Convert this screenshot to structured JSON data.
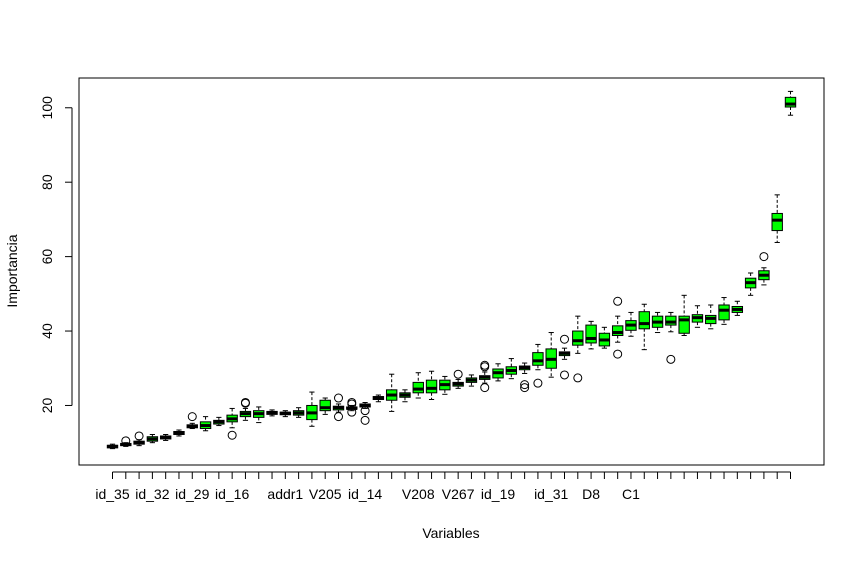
{
  "chart_data": {
    "type": "boxplot",
    "xlabel": "Variables",
    "ylabel": "Importancia",
    "ylim": [
      4,
      108
    ],
    "yticks": [
      20,
      40,
      60,
      80,
      100
    ],
    "box_color": "#00ff00",
    "x_tick_labels": [
      {
        "pos": 1,
        "label": "id_35"
      },
      {
        "pos": 4,
        "label": "id_32"
      },
      {
        "pos": 7,
        "label": "id_29"
      },
      {
        "pos": 10,
        "label": "id_16"
      },
      {
        "pos": 14,
        "label": "addr1"
      },
      {
        "pos": 17,
        "label": "V205"
      },
      {
        "pos": 20,
        "label": "id_14"
      },
      {
        "pos": 24,
        "label": "V208"
      },
      {
        "pos": 27,
        "label": "V267"
      },
      {
        "pos": 30,
        "label": "id_19"
      },
      {
        "pos": 34,
        "label": "id_31"
      },
      {
        "pos": 37,
        "label": "D8"
      },
      {
        "pos": 40,
        "label": "C1"
      }
    ],
    "boxes": [
      {
        "min": 8.4,
        "q1": 8.6,
        "median": 9.0,
        "q3": 9.3,
        "max": 9.6,
        "outliers": []
      },
      {
        "min": 9.0,
        "q1": 9.2,
        "median": 9.5,
        "q3": 9.8,
        "max": 10.0,
        "outliers": [
          10.5
        ]
      },
      {
        "min": 9.2,
        "q1": 9.6,
        "median": 10.0,
        "q3": 10.4,
        "max": 10.8,
        "outliers": [
          11.8
        ]
      },
      {
        "min": 10.0,
        "q1": 10.4,
        "median": 11.0,
        "q3": 11.6,
        "max": 12.2,
        "outliers": []
      },
      {
        "min": 10.6,
        "q1": 11.0,
        "median": 11.4,
        "q3": 11.8,
        "max": 12.2,
        "outliers": []
      },
      {
        "min": 11.8,
        "q1": 12.2,
        "median": 12.6,
        "q3": 13.0,
        "max": 13.4,
        "outliers": []
      },
      {
        "min": 13.8,
        "q1": 14.0,
        "median": 14.4,
        "q3": 14.8,
        "max": 15.2,
        "outliers": [
          17.0
        ]
      },
      {
        "min": 13.2,
        "q1": 13.8,
        "median": 14.6,
        "q3": 15.6,
        "max": 17.0,
        "outliers": []
      },
      {
        "min": 14.6,
        "q1": 15.0,
        "median": 15.6,
        "q3": 16.0,
        "max": 16.8,
        "outliers": []
      },
      {
        "min": 14.0,
        "q1": 15.6,
        "median": 16.4,
        "q3": 17.4,
        "max": 19.2,
        "outliers": [
          12.0
        ]
      },
      {
        "min": 16.0,
        "q1": 17.0,
        "median": 17.8,
        "q3": 18.4,
        "max": 19.2,
        "outliers": [
          20.6,
          20.8
        ]
      },
      {
        "min": 15.4,
        "q1": 16.8,
        "median": 17.8,
        "q3": 18.6,
        "max": 19.6,
        "outliers": []
      },
      {
        "min": 17.2,
        "q1": 17.6,
        "median": 18.0,
        "q3": 18.4,
        "max": 18.8,
        "outliers": []
      },
      {
        "min": 17.0,
        "q1": 17.5,
        "median": 17.9,
        "q3": 18.2,
        "max": 18.6,
        "outliers": []
      },
      {
        "min": 16.8,
        "q1": 17.4,
        "median": 18.0,
        "q3": 18.6,
        "max": 19.4,
        "outliers": []
      },
      {
        "min": 14.4,
        "q1": 16.2,
        "median": 18.0,
        "q3": 20.0,
        "max": 23.6,
        "outliers": []
      },
      {
        "min": 17.6,
        "q1": 18.6,
        "median": 19.4,
        "q3": 21.4,
        "max": 22.0,
        "outliers": []
      },
      {
        "min": 18.2,
        "q1": 18.8,
        "median": 19.4,
        "q3": 19.8,
        "max": 20.4,
        "outliers": [
          17.0,
          22.0
        ]
      },
      {
        "min": 18.6,
        "q1": 19.0,
        "median": 19.2,
        "q3": 19.6,
        "max": 20.0,
        "outliers": [
          18.2,
          20.4,
          20.8
        ]
      },
      {
        "min": 19.2,
        "q1": 19.6,
        "median": 20.0,
        "q3": 20.4,
        "max": 20.8,
        "outliers": [
          16.0,
          18.6
        ]
      },
      {
        "min": 21.0,
        "q1": 21.6,
        "median": 22.0,
        "q3": 22.4,
        "max": 22.8,
        "outliers": []
      },
      {
        "min": 18.4,
        "q1": 21.4,
        "median": 22.8,
        "q3": 24.2,
        "max": 28.4,
        "outliers": []
      },
      {
        "min": 21.0,
        "q1": 22.2,
        "median": 22.8,
        "q3": 23.4,
        "max": 24.2,
        "outliers": []
      },
      {
        "min": 22.0,
        "q1": 23.4,
        "median": 24.4,
        "q3": 26.2,
        "max": 28.8,
        "outliers": []
      },
      {
        "min": 21.6,
        "q1": 23.4,
        "median": 24.6,
        "q3": 26.8,
        "max": 29.2,
        "outliers": []
      },
      {
        "min": 23.0,
        "q1": 24.2,
        "median": 25.6,
        "q3": 26.8,
        "max": 27.8,
        "outliers": []
      },
      {
        "min": 24.6,
        "q1": 25.2,
        "median": 25.8,
        "q3": 26.2,
        "max": 27.0,
        "outliers": [
          28.4
        ]
      },
      {
        "min": 25.2,
        "q1": 26.2,
        "median": 26.8,
        "q3": 27.4,
        "max": 28.2,
        "outliers": []
      },
      {
        "min": 26.0,
        "q1": 27.0,
        "median": 27.6,
        "q3": 28.0,
        "max": 29.0,
        "outliers": [
          24.8,
          30.4,
          30.8
        ]
      },
      {
        "min": 26.6,
        "q1": 27.4,
        "median": 28.8,
        "q3": 29.8,
        "max": 31.2,
        "outliers": []
      },
      {
        "min": 27.2,
        "q1": 28.4,
        "median": 29.4,
        "q3": 30.4,
        "max": 32.6,
        "outliers": []
      },
      {
        "min": 28.6,
        "q1": 29.6,
        "median": 30.2,
        "q3": 30.6,
        "max": 31.4,
        "outliers": [
          24.8,
          25.6
        ]
      },
      {
        "min": 29.6,
        "q1": 30.8,
        "median": 32.0,
        "q3": 34.2,
        "max": 36.4,
        "outliers": [
          26.0
        ]
      },
      {
        "min": 27.6,
        "q1": 30.0,
        "median": 32.4,
        "q3": 35.2,
        "max": 39.6,
        "outliers": []
      },
      {
        "min": 32.4,
        "q1": 33.4,
        "median": 34.0,
        "q3": 34.4,
        "max": 35.4,
        "outliers": [
          28.2,
          37.8
        ]
      },
      {
        "min": 34.0,
        "q1": 36.2,
        "median": 37.4,
        "q3": 40.0,
        "max": 44.0,
        "outliers": [
          27.4
        ]
      },
      {
        "min": 35.2,
        "q1": 36.8,
        "median": 38.0,
        "q3": 41.6,
        "max": 42.6,
        "outliers": []
      },
      {
        "min": 35.4,
        "q1": 36.0,
        "median": 37.6,
        "q3": 39.4,
        "max": 41.0,
        "outliers": []
      },
      {
        "min": 37.0,
        "q1": 38.8,
        "median": 39.6,
        "q3": 41.4,
        "max": 44.0,
        "outliers": [
          33.8,
          48.0
        ]
      },
      {
        "min": 38.6,
        "q1": 40.2,
        "median": 41.6,
        "q3": 42.8,
        "max": 45.0,
        "outliers": []
      },
      {
        "min": 35.0,
        "q1": 40.6,
        "median": 42.0,
        "q3": 45.2,
        "max": 47.2,
        "outliers": []
      },
      {
        "min": 39.6,
        "q1": 41.0,
        "median": 42.4,
        "q3": 44.0,
        "max": 45.0,
        "outliers": []
      },
      {
        "min": 39.8,
        "q1": 41.6,
        "median": 42.4,
        "q3": 44.0,
        "max": 45.0,
        "outliers": [
          32.4
        ]
      },
      {
        "min": 38.8,
        "q1": 39.4,
        "median": 43.0,
        "q3": 44.0,
        "max": 49.6,
        "outliers": []
      },
      {
        "min": 41.0,
        "q1": 42.4,
        "median": 43.6,
        "q3": 44.4,
        "max": 46.8,
        "outliers": []
      },
      {
        "min": 40.6,
        "q1": 42.0,
        "median": 43.4,
        "q3": 44.2,
        "max": 47.0,
        "outliers": []
      },
      {
        "min": 41.8,
        "q1": 43.0,
        "median": 45.6,
        "q3": 47.0,
        "max": 49.0,
        "outliers": []
      },
      {
        "min": 44.2,
        "q1": 45.0,
        "median": 45.8,
        "q3": 46.6,
        "max": 48.0,
        "outliers": []
      },
      {
        "min": 49.6,
        "q1": 51.6,
        "median": 53.0,
        "q3": 54.2,
        "max": 55.6,
        "outliers": []
      },
      {
        "min": 52.4,
        "q1": 53.8,
        "median": 55.0,
        "q3": 56.2,
        "max": 57.0,
        "outliers": [
          60.0
        ]
      },
      {
        "min": 63.8,
        "q1": 67.0,
        "median": 69.8,
        "q3": 71.6,
        "max": 76.6,
        "outliers": []
      },
      {
        "min": 98.0,
        "q1": 100.2,
        "median": 101.0,
        "q3": 102.8,
        "max": 104.4,
        "outliers": []
      }
    ]
  }
}
